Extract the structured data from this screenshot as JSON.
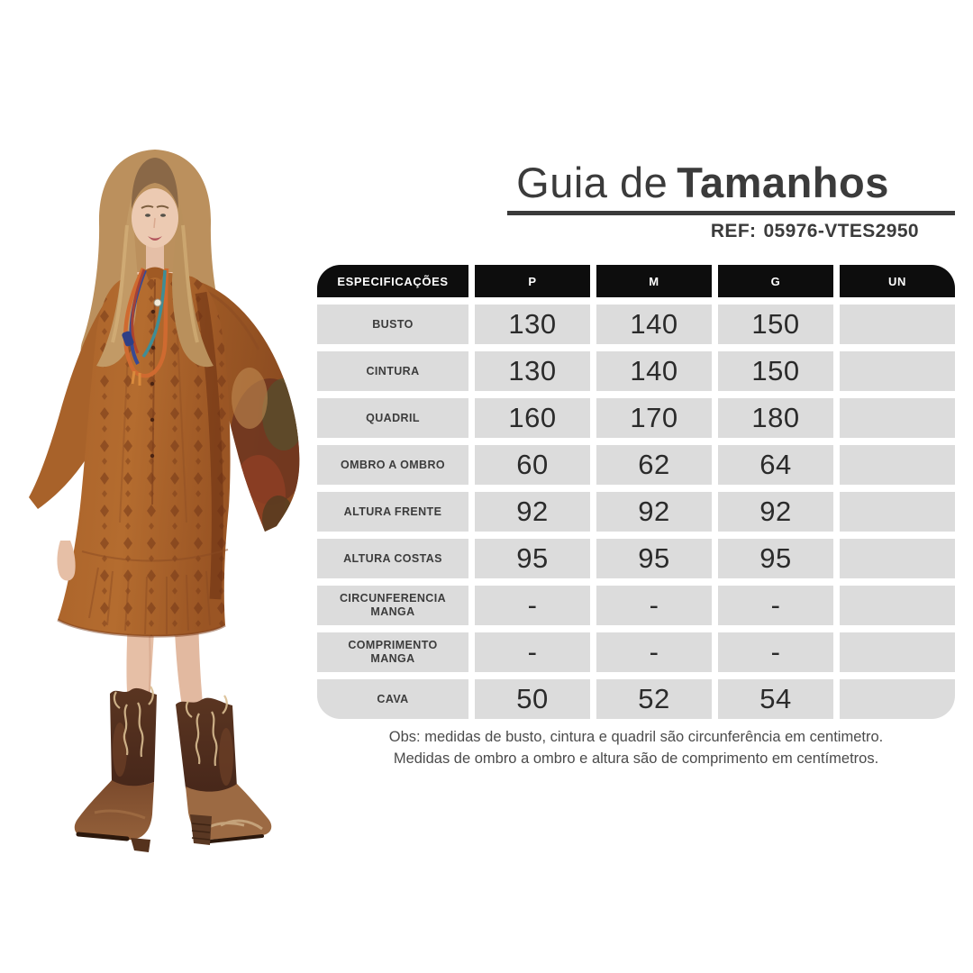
{
  "header": {
    "title_regular": "Guia de",
    "title_bold": "Tamanhos",
    "ref_label": "REF:",
    "ref_value": "05976-VTES2950"
  },
  "table": {
    "columns": [
      "ESPECIFICAÇÕES",
      "P",
      "M",
      "G",
      "UN"
    ],
    "rows": [
      {
        "label": "BUSTO",
        "values": [
          "130",
          "140",
          "150",
          ""
        ]
      },
      {
        "label": "CINTURA",
        "values": [
          "130",
          "140",
          "150",
          ""
        ]
      },
      {
        "label": "QUADRIL",
        "values": [
          "160",
          "170",
          "180",
          ""
        ]
      },
      {
        "label": "OMBRO A OMBRO",
        "values": [
          "60",
          "62",
          "64",
          ""
        ]
      },
      {
        "label": "ALTURA FRENTE",
        "values": [
          "92",
          "92",
          "92",
          ""
        ]
      },
      {
        "label": "ALTURA COSTAS",
        "values": [
          "95",
          "95",
          "95",
          ""
        ]
      },
      {
        "label": "CIRCUNFERENCIA MANGA",
        "values": [
          "-",
          "-",
          "-",
          ""
        ]
      },
      {
        "label": "COMPRIMENTO MANGA",
        "values": [
          "-",
          "-",
          "-",
          ""
        ]
      },
      {
        "label": "CAVA",
        "values": [
          "50",
          "52",
          "54",
          ""
        ]
      }
    ]
  },
  "notes": {
    "line1": "Obs: medidas de busto, cintura e quadril são circunferência em centimetro.",
    "line2": "Medidas de ombro a ombro e altura são de comprimento em centímetros."
  },
  "photo": {
    "description": "Modelo vestindo vestido boho ferrugem com mangas amplas e botas western marrons"
  },
  "colors": {
    "title_text": "#3b3b3b",
    "table_header_bg": "#0d0d0d",
    "table_header_text": "#ffffff",
    "cell_bg": "#dcdcdc",
    "cell_text": "#2b2b2b",
    "notes_text": "#4b4b4b",
    "dress_rust": "#b26a2e",
    "boot_brown": "#53301f",
    "embroidery_tan": "#dcc094"
  }
}
